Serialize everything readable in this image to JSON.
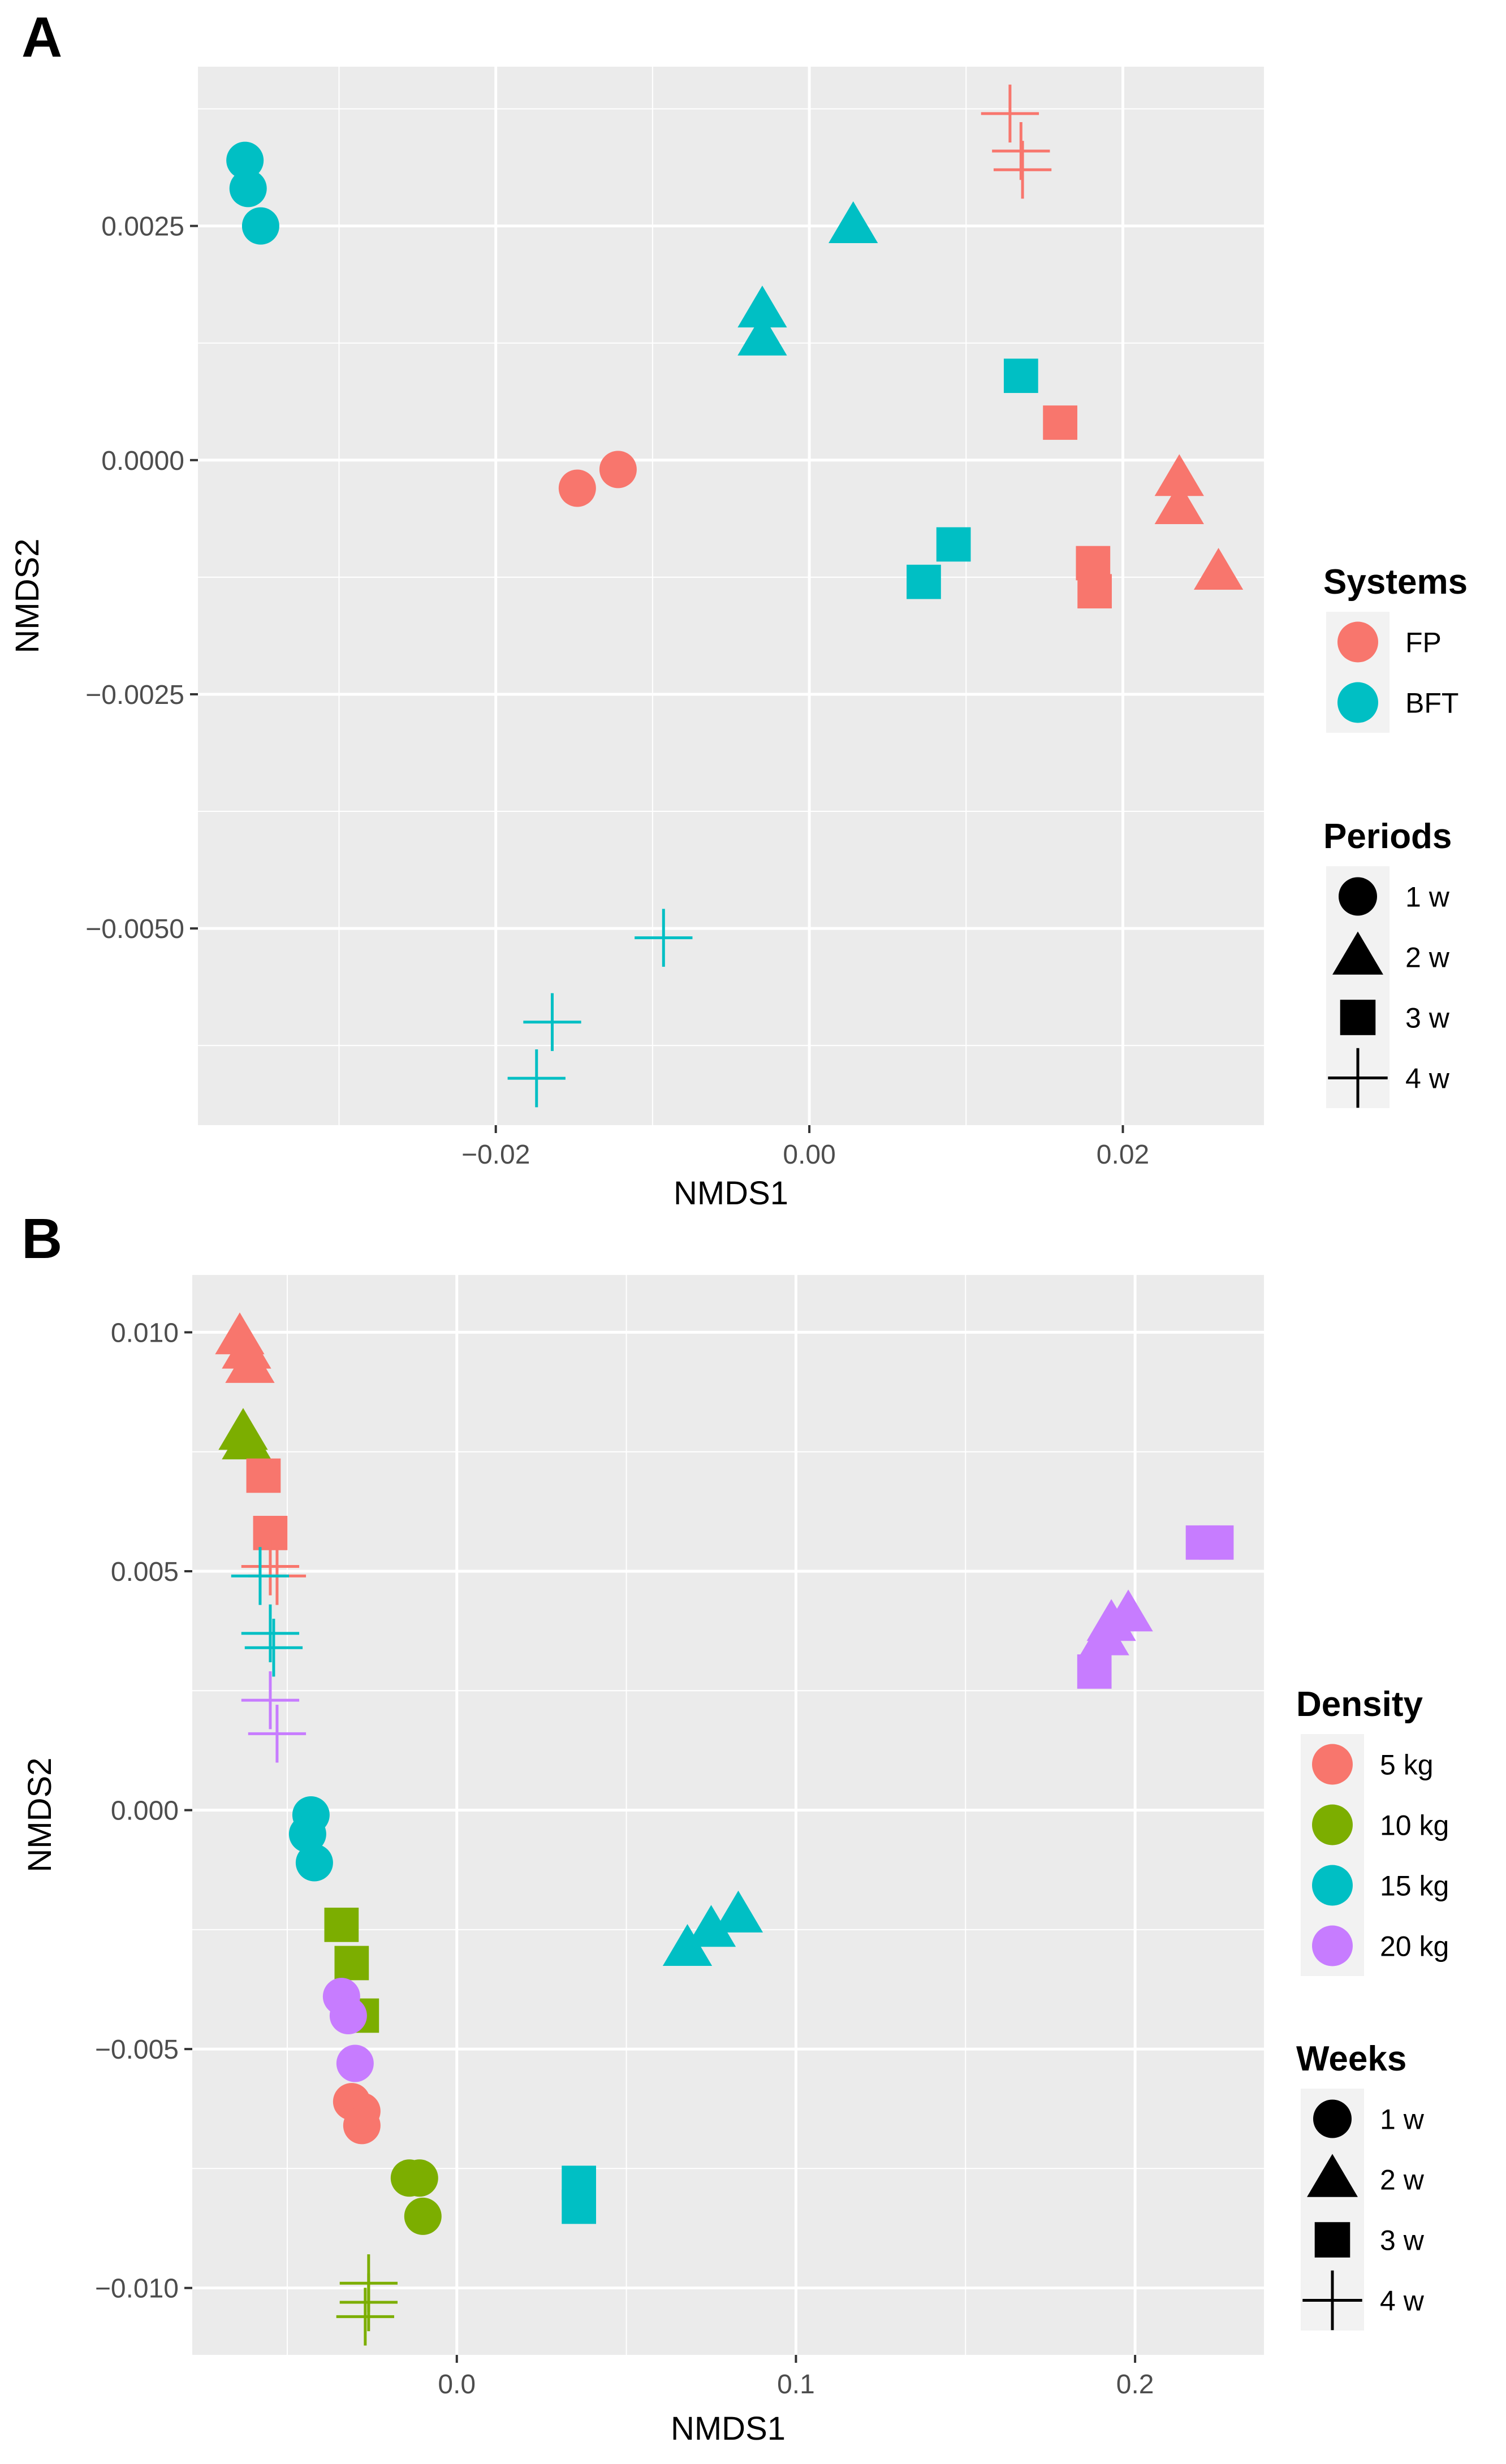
{
  "chart_data": [
    {
      "panel": "A",
      "type": "scatter",
      "xlabel": "NMDS1",
      "ylabel": "NMDS2",
      "xlim": [
        -0.039,
        0.029
      ],
      "ylim": [
        -0.0071,
        0.0042
      ],
      "xbreaks": [
        -0.02,
        0.0,
        0.02
      ],
      "xtick_labels": [
        "−0.02",
        "0.00",
        "0.02"
      ],
      "ybreaks": [
        0.0025,
        0.0,
        -0.0025,
        -0.005
      ],
      "ytick_labels": [
        "0.0025",
        "0.0000",
        "−0.0025",
        "−0.0050"
      ],
      "grid": true,
      "color_legend": {
        "title": "Systems",
        "entries": [
          {
            "label": "FP",
            "color": "#F8766D"
          },
          {
            "label": "BFT",
            "color": "#00BFC4"
          }
        ]
      },
      "shape_legend": {
        "title": "Periods",
        "entries": [
          {
            "label": "1 w",
            "shape": "circle"
          },
          {
            "label": "2 w",
            "shape": "triangle"
          },
          {
            "label": "3 w",
            "shape": "square"
          },
          {
            "label": "4 w",
            "shape": "plus"
          }
        ]
      },
      "points": [
        {
          "x": -0.036,
          "y": 0.0032,
          "group": "BFT",
          "period": "1 w"
        },
        {
          "x": -0.0358,
          "y": 0.0029,
          "group": "BFT",
          "period": "1 w"
        },
        {
          "x": -0.035,
          "y": 0.0025,
          "group": "BFT",
          "period": "1 w"
        },
        {
          "x": -0.0148,
          "y": -0.0003,
          "group": "FP",
          "period": "1 w"
        },
        {
          "x": -0.0122,
          "y": -0.0001,
          "group": "FP",
          "period": "1 w"
        },
        {
          "x": 0.0028,
          "y": 0.0025,
          "group": "BFT",
          "period": "2 w"
        },
        {
          "x": -0.003,
          "y": 0.0016,
          "group": "BFT",
          "period": "2 w"
        },
        {
          "x": -0.003,
          "y": 0.0013,
          "group": "BFT",
          "period": "2 w"
        },
        {
          "x": 0.0236,
          "y": -0.0002,
          "group": "FP",
          "period": "2 w"
        },
        {
          "x": 0.0236,
          "y": -0.0005,
          "group": "FP",
          "period": "2 w"
        },
        {
          "x": 0.0261,
          "y": -0.0012,
          "group": "FP",
          "period": "2 w"
        },
        {
          "x": 0.0135,
          "y": 0.0009,
          "group": "BFT",
          "period": "3 w"
        },
        {
          "x": 0.016,
          "y": 0.0004,
          "group": "FP",
          "period": "3 w"
        },
        {
          "x": 0.0092,
          "y": -0.0009,
          "group": "BFT",
          "period": "3 w"
        },
        {
          "x": 0.0073,
          "y": -0.0013,
          "group": "BFT",
          "period": "3 w"
        },
        {
          "x": 0.0181,
          "y": -0.0011,
          "group": "FP",
          "period": "3 w"
        },
        {
          "x": 0.0182,
          "y": -0.0014,
          "group": "FP",
          "period": "3 w"
        },
        {
          "x": 0.0128,
          "y": 0.0037,
          "group": "FP",
          "period": "4 w"
        },
        {
          "x": 0.0135,
          "y": 0.0033,
          "group": "FP",
          "period": "4 w"
        },
        {
          "x": 0.0136,
          "y": 0.0031,
          "group": "FP",
          "period": "4 w"
        },
        {
          "x": -0.0093,
          "y": -0.0051,
          "group": "BFT",
          "period": "4 w"
        },
        {
          "x": -0.0164,
          "y": -0.006,
          "group": "BFT",
          "period": "4 w"
        },
        {
          "x": -0.0174,
          "y": -0.0066,
          "group": "BFT",
          "period": "4 w"
        }
      ]
    },
    {
      "panel": "B",
      "type": "scatter",
      "xlabel": "NMDS1",
      "ylabel": "NMDS2",
      "xlim": [
        -0.078,
        0.238
      ],
      "ylim": [
        -0.0114,
        0.0112
      ],
      "xbreaks": [
        0.0,
        0.1,
        0.2
      ],
      "xtick_labels": [
        "0.0",
        "0.1",
        "0.2"
      ],
      "ybreaks": [
        0.01,
        0.005,
        0.0,
        -0.005,
        -0.01
      ],
      "ytick_labels": [
        "0.010",
        "0.005",
        "0.000",
        "−0.005",
        "−0.010"
      ],
      "grid": true,
      "color_legend": {
        "title": "Density",
        "entries": [
          {
            "label": "5 kg",
            "color": "#F8766D"
          },
          {
            "label": "10 kg",
            "color": "#7CAE00"
          },
          {
            "label": "15 kg",
            "color": "#00BFC4"
          },
          {
            "label": "20 kg",
            "color": "#C77CFF"
          }
        ]
      },
      "shape_legend": {
        "title": "Weeks",
        "entries": [
          {
            "label": "1 w",
            "shape": "circle"
          },
          {
            "label": "2 w",
            "shape": "triangle"
          },
          {
            "label": "3 w",
            "shape": "square"
          },
          {
            "label": "4 w",
            "shape": "plus"
          }
        ]
      },
      "points": [
        {
          "x": -0.064,
          "y": 0.0099,
          "group": "5 kg",
          "period": "2 w"
        },
        {
          "x": -0.062,
          "y": 0.0096,
          "group": "5 kg",
          "period": "2 w"
        },
        {
          "x": -0.061,
          "y": 0.0093,
          "group": "5 kg",
          "period": "2 w"
        },
        {
          "x": -0.063,
          "y": 0.0079,
          "group": "10 kg",
          "period": "2 w"
        },
        {
          "x": -0.062,
          "y": 0.0077,
          "group": "10 kg",
          "period": "2 w"
        },
        {
          "x": -0.057,
          "y": 0.007,
          "group": "5 kg",
          "period": "3 w"
        },
        {
          "x": -0.055,
          "y": 0.0058,
          "group": "5 kg",
          "period": "3 w"
        },
        {
          "x": -0.055,
          "y": 0.0051,
          "group": "5 kg",
          "period": "4 w"
        },
        {
          "x": -0.053,
          "y": 0.0049,
          "group": "5 kg",
          "period": "4 w"
        },
        {
          "x": -0.058,
          "y": 0.0049,
          "group": "15 kg",
          "period": "4 w"
        },
        {
          "x": -0.055,
          "y": 0.0037,
          "group": "15 kg",
          "period": "4 w"
        },
        {
          "x": -0.054,
          "y": 0.0034,
          "group": "15 kg",
          "period": "4 w"
        },
        {
          "x": -0.055,
          "y": 0.0023,
          "group": "20 kg",
          "period": "4 w"
        },
        {
          "x": -0.053,
          "y": 0.0016,
          "group": "20 kg",
          "period": "4 w"
        },
        {
          "x": -0.043,
          "y": -0.0001,
          "group": "15 kg",
          "period": "1 w"
        },
        {
          "x": -0.044,
          "y": -0.0005,
          "group": "15 kg",
          "period": "1 w"
        },
        {
          "x": -0.042,
          "y": -0.0011,
          "group": "15 kg",
          "period": "1 w"
        },
        {
          "x": -0.034,
          "y": -0.0024,
          "group": "10 kg",
          "period": "3 w"
        },
        {
          "x": -0.031,
          "y": -0.0032,
          "group": "10 kg",
          "period": "3 w"
        },
        {
          "x": -0.028,
          "y": -0.0043,
          "group": "10 kg",
          "period": "3 w"
        },
        {
          "x": -0.034,
          "y": -0.0039,
          "group": "20 kg",
          "period": "1 w"
        },
        {
          "x": -0.032,
          "y": -0.0043,
          "group": "20 kg",
          "period": "1 w"
        },
        {
          "x": -0.03,
          "y": -0.0053,
          "group": "20 kg",
          "period": "1 w"
        },
        {
          "x": -0.031,
          "y": -0.0061,
          "group": "5 kg",
          "period": "1 w"
        },
        {
          "x": -0.028,
          "y": -0.0063,
          "group": "5 kg",
          "period": "1 w"
        },
        {
          "x": -0.028,
          "y": -0.0066,
          "group": "5 kg",
          "period": "1 w"
        },
        {
          "x": -0.014,
          "y": -0.0077,
          "group": "10 kg",
          "period": "1 w"
        },
        {
          "x": -0.011,
          "y": -0.0077,
          "group": "10 kg",
          "period": "1 w"
        },
        {
          "x": -0.01,
          "y": -0.0085,
          "group": "10 kg",
          "period": "1 w"
        },
        {
          "x": 0.068,
          "y": -0.0029,
          "group": "15 kg",
          "period": "2 w"
        },
        {
          "x": 0.075,
          "y": -0.0025,
          "group": "15 kg",
          "period": "2 w"
        },
        {
          "x": 0.083,
          "y": -0.0022,
          "group": "15 kg",
          "period": "2 w"
        },
        {
          "x": 0.036,
          "y": -0.0078,
          "group": "15 kg",
          "period": "3 w"
        },
        {
          "x": 0.036,
          "y": -0.0083,
          "group": "15 kg",
          "period": "3 w"
        },
        {
          "x": -0.026,
          "y": -0.0099,
          "group": "10 kg",
          "period": "4 w"
        },
        {
          "x": -0.026,
          "y": -0.0103,
          "group": "10 kg",
          "period": "4 w"
        },
        {
          "x": -0.027,
          "y": -0.0106,
          "group": "10 kg",
          "period": "4 w"
        },
        {
          "x": 0.191,
          "y": 0.0036,
          "group": "20 kg",
          "period": "2 w"
        },
        {
          "x": 0.193,
          "y": 0.0039,
          "group": "20 kg",
          "period": "2 w"
        },
        {
          "x": 0.198,
          "y": 0.0041,
          "group": "20 kg",
          "period": "2 w"
        },
        {
          "x": 0.188,
          "y": 0.0029,
          "group": "20 kg",
          "period": "3 w"
        },
        {
          "x": 0.22,
          "y": 0.0056,
          "group": "20 kg",
          "period": "3 w"
        },
        {
          "x": 0.224,
          "y": 0.0056,
          "group": "20 kg",
          "period": "3 w"
        }
      ]
    }
  ]
}
